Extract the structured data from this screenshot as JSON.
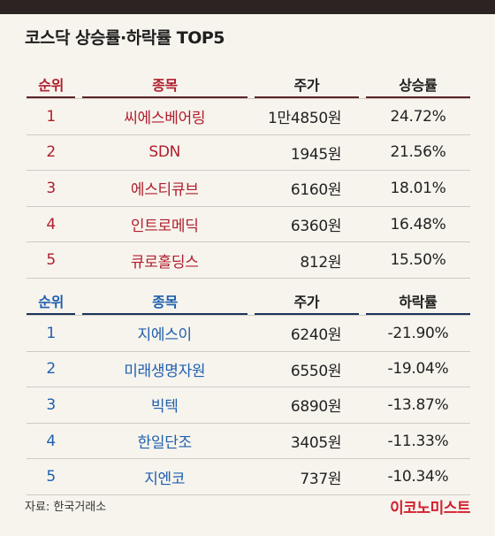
{
  "title": "코스닥 상승률·하락률 TOP5",
  "gainers": {
    "headers": {
      "rank": "순위",
      "name": "종목",
      "price": "주가",
      "rate": "상승률"
    },
    "rows": [
      {
        "rank": "1",
        "name": "씨에스베어링",
        "price": "1만4850원",
        "rate": "24.72%"
      },
      {
        "rank": "2",
        "name": "SDN",
        "price": "1945원",
        "rate": "21.56%"
      },
      {
        "rank": "3",
        "name": "에스티큐브",
        "price": "6160원",
        "rate": "18.01%"
      },
      {
        "rank": "4",
        "name": "인트로메딕",
        "price": "6360원",
        "rate": "16.48%"
      },
      {
        "rank": "5",
        "name": "큐로홀딩스",
        "price": "812원",
        "rate": "15.50%"
      }
    ]
  },
  "losers": {
    "headers": {
      "rank": "순위",
      "name": "종목",
      "price": "주가",
      "rate": "하락률"
    },
    "rows": [
      {
        "rank": "1",
        "name": "지에스이",
        "price": "6240원",
        "rate": "-21.90%"
      },
      {
        "rank": "2",
        "name": "미래생명자원",
        "price": "6550원",
        "rate": "-19.04%"
      },
      {
        "rank": "3",
        "name": "빅텍",
        "price": "6890원",
        "rate": "-13.87%"
      },
      {
        "rank": "4",
        "name": "한일단조",
        "price": "3405원",
        "rate": "-11.33%"
      },
      {
        "rank": "5",
        "name": "지엔코",
        "price": "737원",
        "rate": "-10.34%"
      }
    ]
  },
  "source": "자료: 한국거래소",
  "logo": "이코노미스트"
}
